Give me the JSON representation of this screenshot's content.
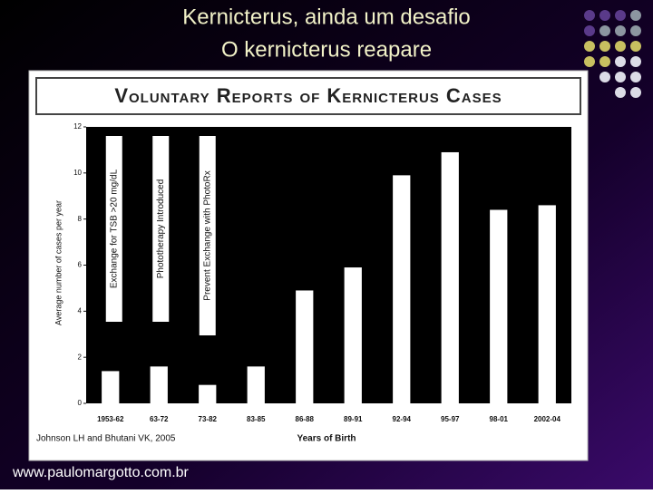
{
  "slide": {
    "title_lines": [
      "Kernicterus, ainda um desafio",
      "O kernicterus reapare"
    ],
    "footer": "www.paulomargotto.com.br"
  },
  "chart_data": {
    "type": "bar",
    "title": "Voluntary Reports of Kernicterus Cases",
    "categories": [
      "1953-62",
      "63-72",
      "73-82",
      "83-85",
      "86-88",
      "89-91",
      "92-94",
      "95-97",
      "98-01",
      "2002-04"
    ],
    "values": [
      1.4,
      1.6,
      0.8,
      1.6,
      4.9,
      5.9,
      9.9,
      10.9,
      8.4,
      8.6
    ],
    "color": "#ffffff",
    "ylim": [
      0,
      12
    ],
    "yticks": [
      0,
      2,
      4,
      6,
      8,
      10,
      12
    ],
    "y_label": "Average number of cases per year",
    "x_label": "Years of Birth",
    "annotations": [
      "Exchange for TSB >20 mg/dL",
      "Phototherapy Introduced",
      "Prevent Exchange with PhotoRx"
    ],
    "source": "Johnson LH and Bhutani VK, 2005"
  }
}
